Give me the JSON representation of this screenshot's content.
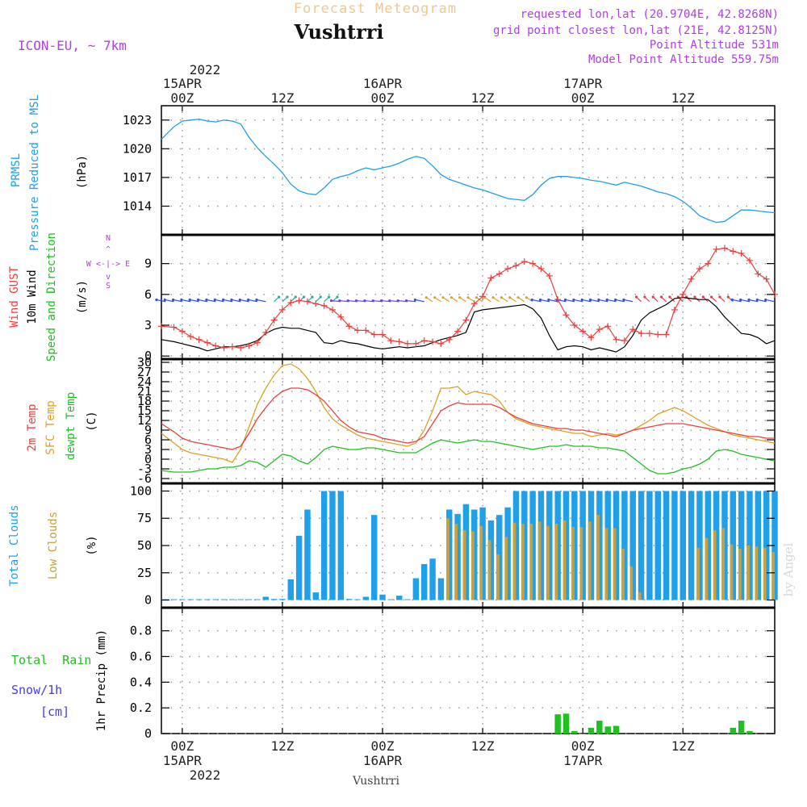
{
  "header": {
    "subtitle": "Forecast Meteogram",
    "station": "Vushtrri",
    "model": "ICON-EU, ~ 7km",
    "requested": "requested lon,lat (20.9704E, 42.8268N)",
    "gridpoint": "grid point closest lon,lat (21E, 42.8125N)",
    "point_alt": "Point Altitude 531m",
    "model_alt": "Model Point Altitude 559.75m",
    "footer_station": "Vushtrri",
    "watermark": "by Angel"
  },
  "colors": {
    "pressure": "#1fa0e8",
    "gust": "#e84040",
    "wind10": "#000000",
    "temp2m": "#e84040",
    "sfc": "#e0a020",
    "dew": "#20c020",
    "total_clouds": "#1fa0e8",
    "low_clouds": "#c8a040",
    "rain": "#20c020",
    "snow": "#4040e0",
    "meta": "#b040e0",
    "title": "#f0c890"
  },
  "time_axis": {
    "top_year": "2022",
    "top_ticks": [
      {
        "hour": 0,
        "date": "15APR",
        "label": "00Z"
      },
      {
        "hour": 12,
        "date": "",
        "label": "12Z"
      },
      {
        "hour": 24,
        "date": "16APR",
        "label": "00Z"
      },
      {
        "hour": 36,
        "date": "",
        "label": "12Z"
      },
      {
        "hour": 48,
        "date": "17APR",
        "label": "00Z"
      },
      {
        "hour": 60,
        "date": "",
        "label": "12Z"
      }
    ],
    "bottom_year": "2022",
    "bottom_ticks": [
      {
        "hour": 0,
        "label": "00Z",
        "date": "15APR"
      },
      {
        "hour": 12,
        "label": "12Z",
        "date": ""
      },
      {
        "hour": 24,
        "label": "00Z",
        "date": "16APR"
      },
      {
        "hour": 36,
        "label": "12Z",
        "date": ""
      },
      {
        "hour": 48,
        "label": "00Z",
        "date": "17APR"
      },
      {
        "hour": 60,
        "label": "12Z",
        "date": ""
      }
    ],
    "start_hour": -2.5,
    "end_hour": 71
  },
  "chart_data": [
    {
      "type": "line",
      "id": "pressure",
      "title": "PRMSL",
      "title2": "Pressure Reduced to MSL",
      "ylabel": "(hPa)",
      "ylim": [
        1011,
        1024.5
      ],
      "yticks": [
        1014,
        1017,
        1020,
        1023
      ],
      "x": [
        -2.5,
        -1,
        0,
        1,
        2,
        3,
        4,
        5,
        6,
        7,
        8,
        9,
        10,
        11,
        12,
        13,
        14,
        15,
        16,
        17,
        18,
        19,
        20,
        21,
        22,
        23,
        24,
        25,
        26,
        27,
        28,
        29,
        30,
        31,
        32,
        33,
        34,
        35,
        36,
        37,
        38,
        39,
        40,
        41,
        42,
        43,
        44,
        45,
        46,
        47,
        48,
        49,
        50,
        51,
        52,
        53,
        54,
        55,
        56,
        57,
        58,
        59,
        60,
        61,
        62,
        63,
        64,
        65,
        66,
        67,
        68,
        69,
        70,
        71
      ],
      "values": [
        1021.0,
        1022.3,
        1022.9,
        1023.0,
        1023.1,
        1022.9,
        1022.8,
        1023.0,
        1022.9,
        1022.6,
        1021.2,
        1020.1,
        1019.2,
        1018.4,
        1017.5,
        1016.3,
        1015.6,
        1015.3,
        1015.2,
        1015.9,
        1016.8,
        1017.1,
        1017.3,
        1017.7,
        1018.0,
        1017.8,
        1018.0,
        1018.2,
        1018.5,
        1018.9,
        1019.2,
        1019.0,
        1018.2,
        1017.3,
        1016.8,
        1016.5,
        1016.2,
        1015.9,
        1015.7,
        1015.4,
        1015.1,
        1014.8,
        1014.7,
        1014.6,
        1015.2,
        1016.2,
        1016.9,
        1017.1,
        1017.1,
        1017.0,
        1016.9,
        1016.7,
        1016.6,
        1016.4,
        1016.2,
        1016.5,
        1016.3,
        1016.1,
        1015.8,
        1015.5,
        1015.3,
        1015.0,
        1014.5,
        1013.8,
        1013.0,
        1012.6,
        1012.3,
        1012.4,
        1013.0,
        1013.6,
        1013.6,
        1013.5,
        1013.4,
        1013.3
      ]
    },
    {
      "type": "line",
      "id": "wind",
      "title_gust": "Wind GUST",
      "title_10m": "10m Wind",
      "title_dir": "Speed and Direction",
      "ylabel": "(m/s)",
      "compass_n": "N",
      "compass_s": "S",
      "compass_w": "W <-|-> E",
      "ylim": [
        -0.3,
        11.8
      ],
      "yticks": [
        0,
        3,
        6,
        9
      ],
      "x": [
        -2.5,
        -1,
        0,
        1,
        2,
        3,
        4,
        5,
        6,
        7,
        8,
        9,
        10,
        11,
        12,
        13,
        14,
        15,
        16,
        17,
        18,
        19,
        20,
        21,
        22,
        23,
        24,
        25,
        26,
        27,
        28,
        29,
        30,
        31,
        32,
        33,
        34,
        35,
        36,
        37,
        38,
        39,
        40,
        41,
        42,
        43,
        44,
        45,
        46,
        47,
        48,
        49,
        50,
        51,
        52,
        53,
        54,
        55,
        56,
        57,
        58,
        59,
        60,
        61,
        62,
        63,
        64,
        65,
        66,
        67,
        68,
        69,
        70,
        71
      ],
      "gust": [
        2.9,
        2.8,
        2.4,
        1.9,
        1.6,
        1.3,
        1.0,
        0.8,
        0.9,
        0.8,
        1.0,
        1.3,
        2.3,
        3.5,
        4.5,
        5.2,
        5.4,
        5.3,
        5.1,
        4.9,
        4.5,
        3.8,
        2.9,
        2.5,
        2.5,
        2.1,
        2.1,
        1.5,
        1.4,
        1.2,
        1.2,
        1.5,
        1.4,
        1.2,
        1.6,
        2.4,
        3.5,
        5.1,
        5.8,
        7.6,
        8.0,
        8.5,
        8.8,
        9.2,
        9.0,
        8.5,
        7.8,
        5.5,
        4.0,
        3.0,
        2.4,
        1.8,
        2.6,
        2.9,
        1.6,
        1.5,
        2.6,
        2.2,
        2.2,
        2.1,
        2.1,
        4.5,
        6.0,
        7.5,
        8.5,
        9.0,
        10.4,
        10.5,
        10.2,
        10.0,
        9.3,
        8.0,
        7.5,
        6.0
      ],
      "wind10": [
        1.6,
        1.4,
        1.2,
        1.0,
        0.8,
        0.5,
        0.7,
        0.9,
        0.9,
        1.0,
        1.2,
        1.5,
        2.2,
        2.6,
        2.8,
        2.7,
        2.7,
        2.5,
        2.3,
        1.3,
        1.2,
        1.5,
        1.3,
        1.2,
        1.0,
        0.8,
        0.7,
        0.8,
        0.9,
        0.8,
        0.9,
        1.0,
        1.3,
        1.6,
        1.8,
        2.0,
        2.3,
        4.3,
        4.5,
        4.6,
        4.7,
        4.8,
        4.9,
        5.0,
        4.6,
        3.7,
        2.0,
        0.6,
        0.9,
        1.0,
        0.9,
        0.6,
        0.8,
        0.6,
        0.4,
        0.9,
        2.0,
        3.5,
        4.2,
        4.6,
        5.0,
        5.6,
        5.7,
        5.6,
        5.5,
        5.5,
        4.8,
        3.8,
        3.0,
        2.2,
        2.1,
        1.8,
        1.2,
        1.5
      ]
    },
    {
      "type": "line",
      "id": "temperature",
      "title_2m": "2m Temp",
      "title_sfc": "SFC Temp",
      "title_dew": "dewpt Temp",
      "ylabel": "(C)",
      "ylim": [
        -7.5,
        31
      ],
      "yticks": [
        -6,
        -3,
        0,
        3,
        6,
        9,
        12,
        15,
        18,
        21,
        24,
        27,
        30
      ],
      "x": [
        -2.5,
        -1,
        0,
        1,
        2,
        3,
        4,
        5,
        6,
        7,
        8,
        9,
        10,
        11,
        12,
        13,
        14,
        15,
        16,
        17,
        18,
        19,
        20,
        21,
        22,
        23,
        24,
        25,
        26,
        27,
        28,
        29,
        30,
        31,
        32,
        33,
        34,
        35,
        36,
        37,
        38,
        39,
        40,
        41,
        42,
        43,
        44,
        45,
        46,
        47,
        48,
        49,
        50,
        51,
        52,
        53,
        54,
        55,
        56,
        57,
        58,
        59,
        60,
        61,
        62,
        63,
        64,
        65,
        66,
        67,
        68,
        69,
        70,
        71
      ],
      "temp2m": [
        11.0,
        8.5,
        6.5,
        5.5,
        5.0,
        4.5,
        4.0,
        3.5,
        3.0,
        4.0,
        8.0,
        12.5,
        16.0,
        19.0,
        21.0,
        22.0,
        22.0,
        21.5,
        20.0,
        18.0,
        15.0,
        12.0,
        10.0,
        8.5,
        8.0,
        7.5,
        6.5,
        6.0,
        5.5,
        5.0,
        5.5,
        7.0,
        11.0,
        15.0,
        16.5,
        17.5,
        17.0,
        17.0,
        17.0,
        17.0,
        16.0,
        14.5,
        13.0,
        12.0,
        11.0,
        10.5,
        10.0,
        9.5,
        9.5,
        9.0,
        9.0,
        8.5,
        8.0,
        7.5,
        7.0,
        8.0,
        9.0,
        9.5,
        10.0,
        10.5,
        11.0,
        11.0,
        11.0,
        10.5,
        10.0,
        9.5,
        9.0,
        8.5,
        8.0,
        7.5,
        7.0,
        7.0,
        6.5,
        6.5
      ],
      "sfc": [
        8.0,
        5.0,
        3.0,
        2.0,
        1.5,
        1.0,
        0.5,
        0.0,
        -1.0,
        3.0,
        10.0,
        17.0,
        22.0,
        26.0,
        29.0,
        29.5,
        28.0,
        25.0,
        21.0,
        16.0,
        12.5,
        10.5,
        9.0,
        7.5,
        6.5,
        6.0,
        5.5,
        5.0,
        4.5,
        4.0,
        5.0,
        9.0,
        15.0,
        22.0,
        22.0,
        22.5,
        20.0,
        21.0,
        20.5,
        20.0,
        18.0,
        14.5,
        12.5,
        11.5,
        10.5,
        10.0,
        9.5,
        9.0,
        8.5,
        8.0,
        8.0,
        7.0,
        7.5,
        8.0,
        7.5,
        8.0,
        9.0,
        10.5,
        12.0,
        14.0,
        15.0,
        16.0,
        15.0,
        13.5,
        12.0,
        10.5,
        9.5,
        8.5,
        7.5,
        7.0,
        6.5,
        6.0,
        5.5,
        5.0
      ],
      "dew": [
        -3.5,
        -4.0,
        -4.0,
        -4.0,
        -3.5,
        -3.0,
        -3.0,
        -2.5,
        -2.5,
        -2.0,
        -0.5,
        -1.0,
        -2.5,
        -0.5,
        1.5,
        1.0,
        -0.5,
        -1.5,
        0.5,
        3.0,
        4.0,
        3.5,
        3.0,
        3.0,
        3.5,
        3.5,
        3.0,
        2.5,
        2.0,
        2.0,
        2.0,
        3.5,
        5.0,
        6.0,
        5.5,
        5.0,
        5.5,
        6.0,
        5.5,
        5.5,
        5.0,
        4.5,
        4.0,
        3.5,
        3.0,
        3.5,
        4.0,
        4.0,
        4.5,
        4.0,
        4.0,
        4.0,
        3.5,
        3.5,
        3.0,
        2.5,
        0.5,
        -1.5,
        -3.5,
        -4.5,
        -4.5,
        -4.0,
        -3.0,
        -2.5,
        -1.5,
        0.0,
        2.5,
        3.0,
        2.5,
        1.5,
        1.0,
        0.5,
        0.0,
        -0.5
      ]
    },
    {
      "type": "bar",
      "id": "clouds",
      "title_total": "Total Clouds",
      "title_low": "Low Clouds",
      "ylabel": "(%)",
      "ylim": [
        -7,
        107
      ],
      "yticks": [
        0,
        25,
        50,
        75,
        100
      ],
      "x": [
        -2,
        -1,
        0,
        1,
        2,
        3,
        4,
        5,
        6,
        7,
        8,
        9,
        10,
        11,
        12,
        13,
        14,
        15,
        16,
        17,
        18,
        19,
        20,
        21,
        22,
        23,
        24,
        25,
        26,
        27,
        28,
        29,
        30,
        31,
        32,
        33,
        34,
        35,
        36,
        37,
        38,
        39,
        40,
        41,
        42,
        43,
        44,
        45,
        46,
        47,
        48,
        49,
        50,
        51,
        52,
        53,
        54,
        55,
        56,
        57,
        58,
        59,
        60,
        61,
        62,
        63,
        64,
        65,
        66,
        67,
        68,
        69,
        70,
        71
      ],
      "total": [
        0,
        0,
        0,
        0,
        0,
        0,
        0,
        0,
        0,
        0,
        0,
        0,
        3,
        1,
        1,
        19,
        59,
        83,
        7,
        100,
        100,
        100,
        1,
        0,
        3,
        78,
        5,
        0,
        4,
        0,
        20,
        33,
        38,
        20,
        83,
        79,
        88,
        83,
        85,
        73,
        78,
        85,
        100,
        100,
        100,
        100,
        100,
        100,
        100,
        100,
        100,
        100,
        100,
        100,
        100,
        100,
        100,
        100,
        100,
        100,
        100,
        100,
        100,
        100,
        100,
        100,
        100,
        100,
        100,
        100,
        100,
        100,
        100,
        100
      ],
      "low": [
        0,
        0,
        0,
        0,
        0,
        0,
        0,
        0,
        0,
        0,
        0,
        0,
        0,
        0,
        0,
        0,
        0,
        0,
        0,
        0,
        0,
        0,
        0,
        0,
        0,
        0,
        0,
        0,
        0,
        0,
        0,
        0,
        0,
        0,
        75,
        70,
        64,
        63,
        68,
        55,
        42,
        58,
        71,
        70,
        70,
        72,
        68,
        70,
        73,
        67,
        67,
        72,
        78,
        66,
        66,
        47,
        31,
        7,
        0,
        0,
        0,
        0,
        0,
        0,
        48,
        57,
        64,
        66,
        51,
        47,
        50,
        49,
        48,
        44
      ]
    },
    {
      "type": "bar",
      "id": "precip",
      "title_rain": "Total  Rain",
      "title_snow": "Snow/1h",
      "title_snow_unit": "[cm]",
      "ylabel": "1hr Precip (mm)",
      "ylim": [
        0,
        0.98
      ],
      "yticks": [
        0,
        0.2,
        0.4,
        0.6,
        0.8
      ],
      "ytick_labels": [
        "0",
        "0.2",
        "0.4",
        "0.6",
        "0.8"
      ],
      "x": [
        45,
        46,
        47,
        48,
        49,
        50,
        51,
        52,
        66,
        67,
        68
      ],
      "rain": [
        0.15,
        0.155,
        0.02,
        0.0,
        0.045,
        0.1,
        0.055,
        0.06,
        0.045,
        0.1,
        0.02
      ]
    }
  ]
}
